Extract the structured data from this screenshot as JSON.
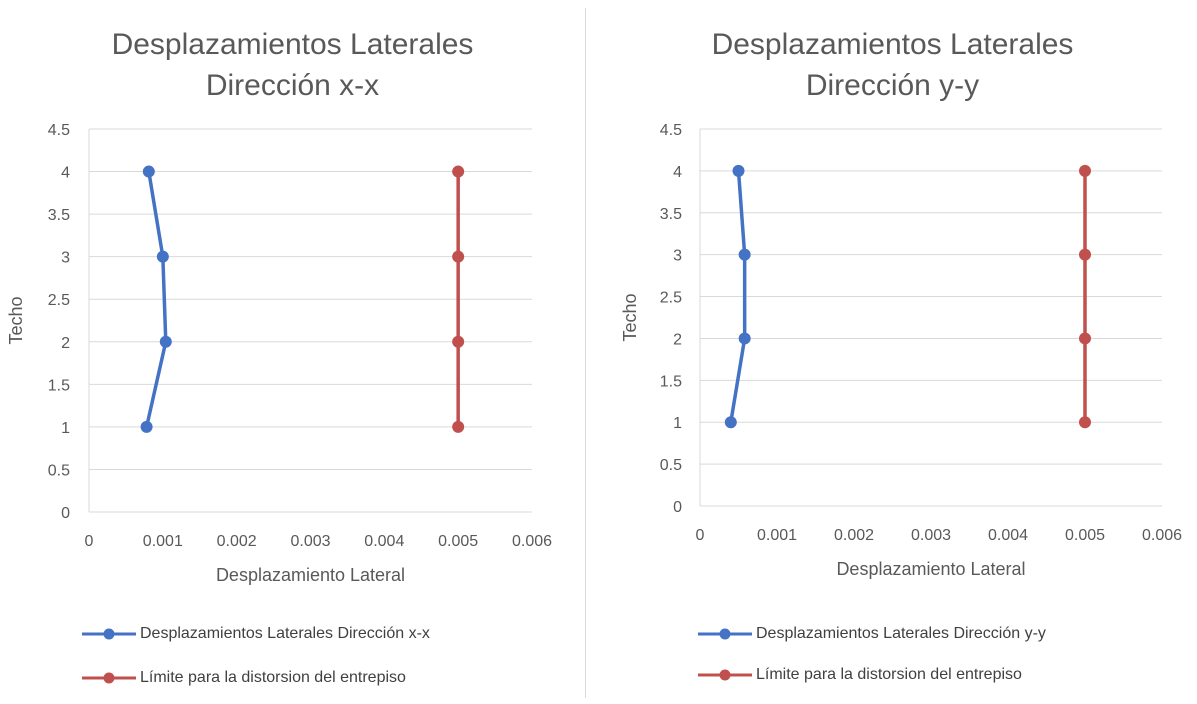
{
  "chart_data": [
    {
      "type": "line",
      "title": [
        "Desplazamientos Laterales",
        "Dirección x-x"
      ],
      "xlabel": "Desplazamiento Lateral",
      "ylabel": "Techo",
      "xlim": [
        0,
        0.006
      ],
      "ylim": [
        0,
        4.5
      ],
      "x_ticks": [
        "0",
        "0.001",
        "0.002",
        "0.003",
        "0.004",
        "0.005",
        "0.006"
      ],
      "y_ticks": [
        "0",
        "0.5",
        "1",
        "1.5",
        "2",
        "2.5",
        "3",
        "3.5",
        "4",
        "4.5"
      ],
      "grid": "horizontal",
      "legend_position": "bottom",
      "series": [
        {
          "name": "Desplazamientos Laterales  Dirección x-x",
          "color": "#4472C4",
          "x": [
            0.00078,
            0.00104,
            0.001,
            0.00081
          ],
          "y": [
            1,
            2,
            3,
            4
          ]
        },
        {
          "name": "Límite para la distorsion del entrepiso",
          "color": "#C0504D",
          "x": [
            0.005,
            0.005,
            0.005,
            0.005
          ],
          "y": [
            1,
            2,
            3,
            4
          ]
        }
      ]
    },
    {
      "type": "line",
      "title": [
        "Desplazamientos Laterales",
        "Dirección y-y"
      ],
      "xlabel": "Desplazamiento Lateral",
      "ylabel": "Techo",
      "xlim": [
        0,
        0.006
      ],
      "ylim": [
        0,
        4.5
      ],
      "x_ticks": [
        "0",
        "0.001",
        "0.002",
        "0.003",
        "0.004",
        "0.005",
        "0.006"
      ],
      "y_ticks": [
        "0",
        "0.5",
        "1",
        "1.5",
        "2",
        "2.5",
        "3",
        "3.5",
        "4",
        "4.5"
      ],
      "grid": "horizontal",
      "legend_position": "bottom",
      "series": [
        {
          "name": "Desplazamientos Laterales  Dirección y-y",
          "color": "#4472C4",
          "x": [
            0.0004,
            0.00058,
            0.00058,
            0.0005
          ],
          "y": [
            1,
            2,
            3,
            4
          ]
        },
        {
          "name": "Límite para la distorsion del entrepiso",
          "color": "#C0504D",
          "x": [
            0.005,
            0.005,
            0.005,
            0.005
          ],
          "y": [
            1,
            2,
            3,
            4
          ]
        }
      ]
    }
  ]
}
